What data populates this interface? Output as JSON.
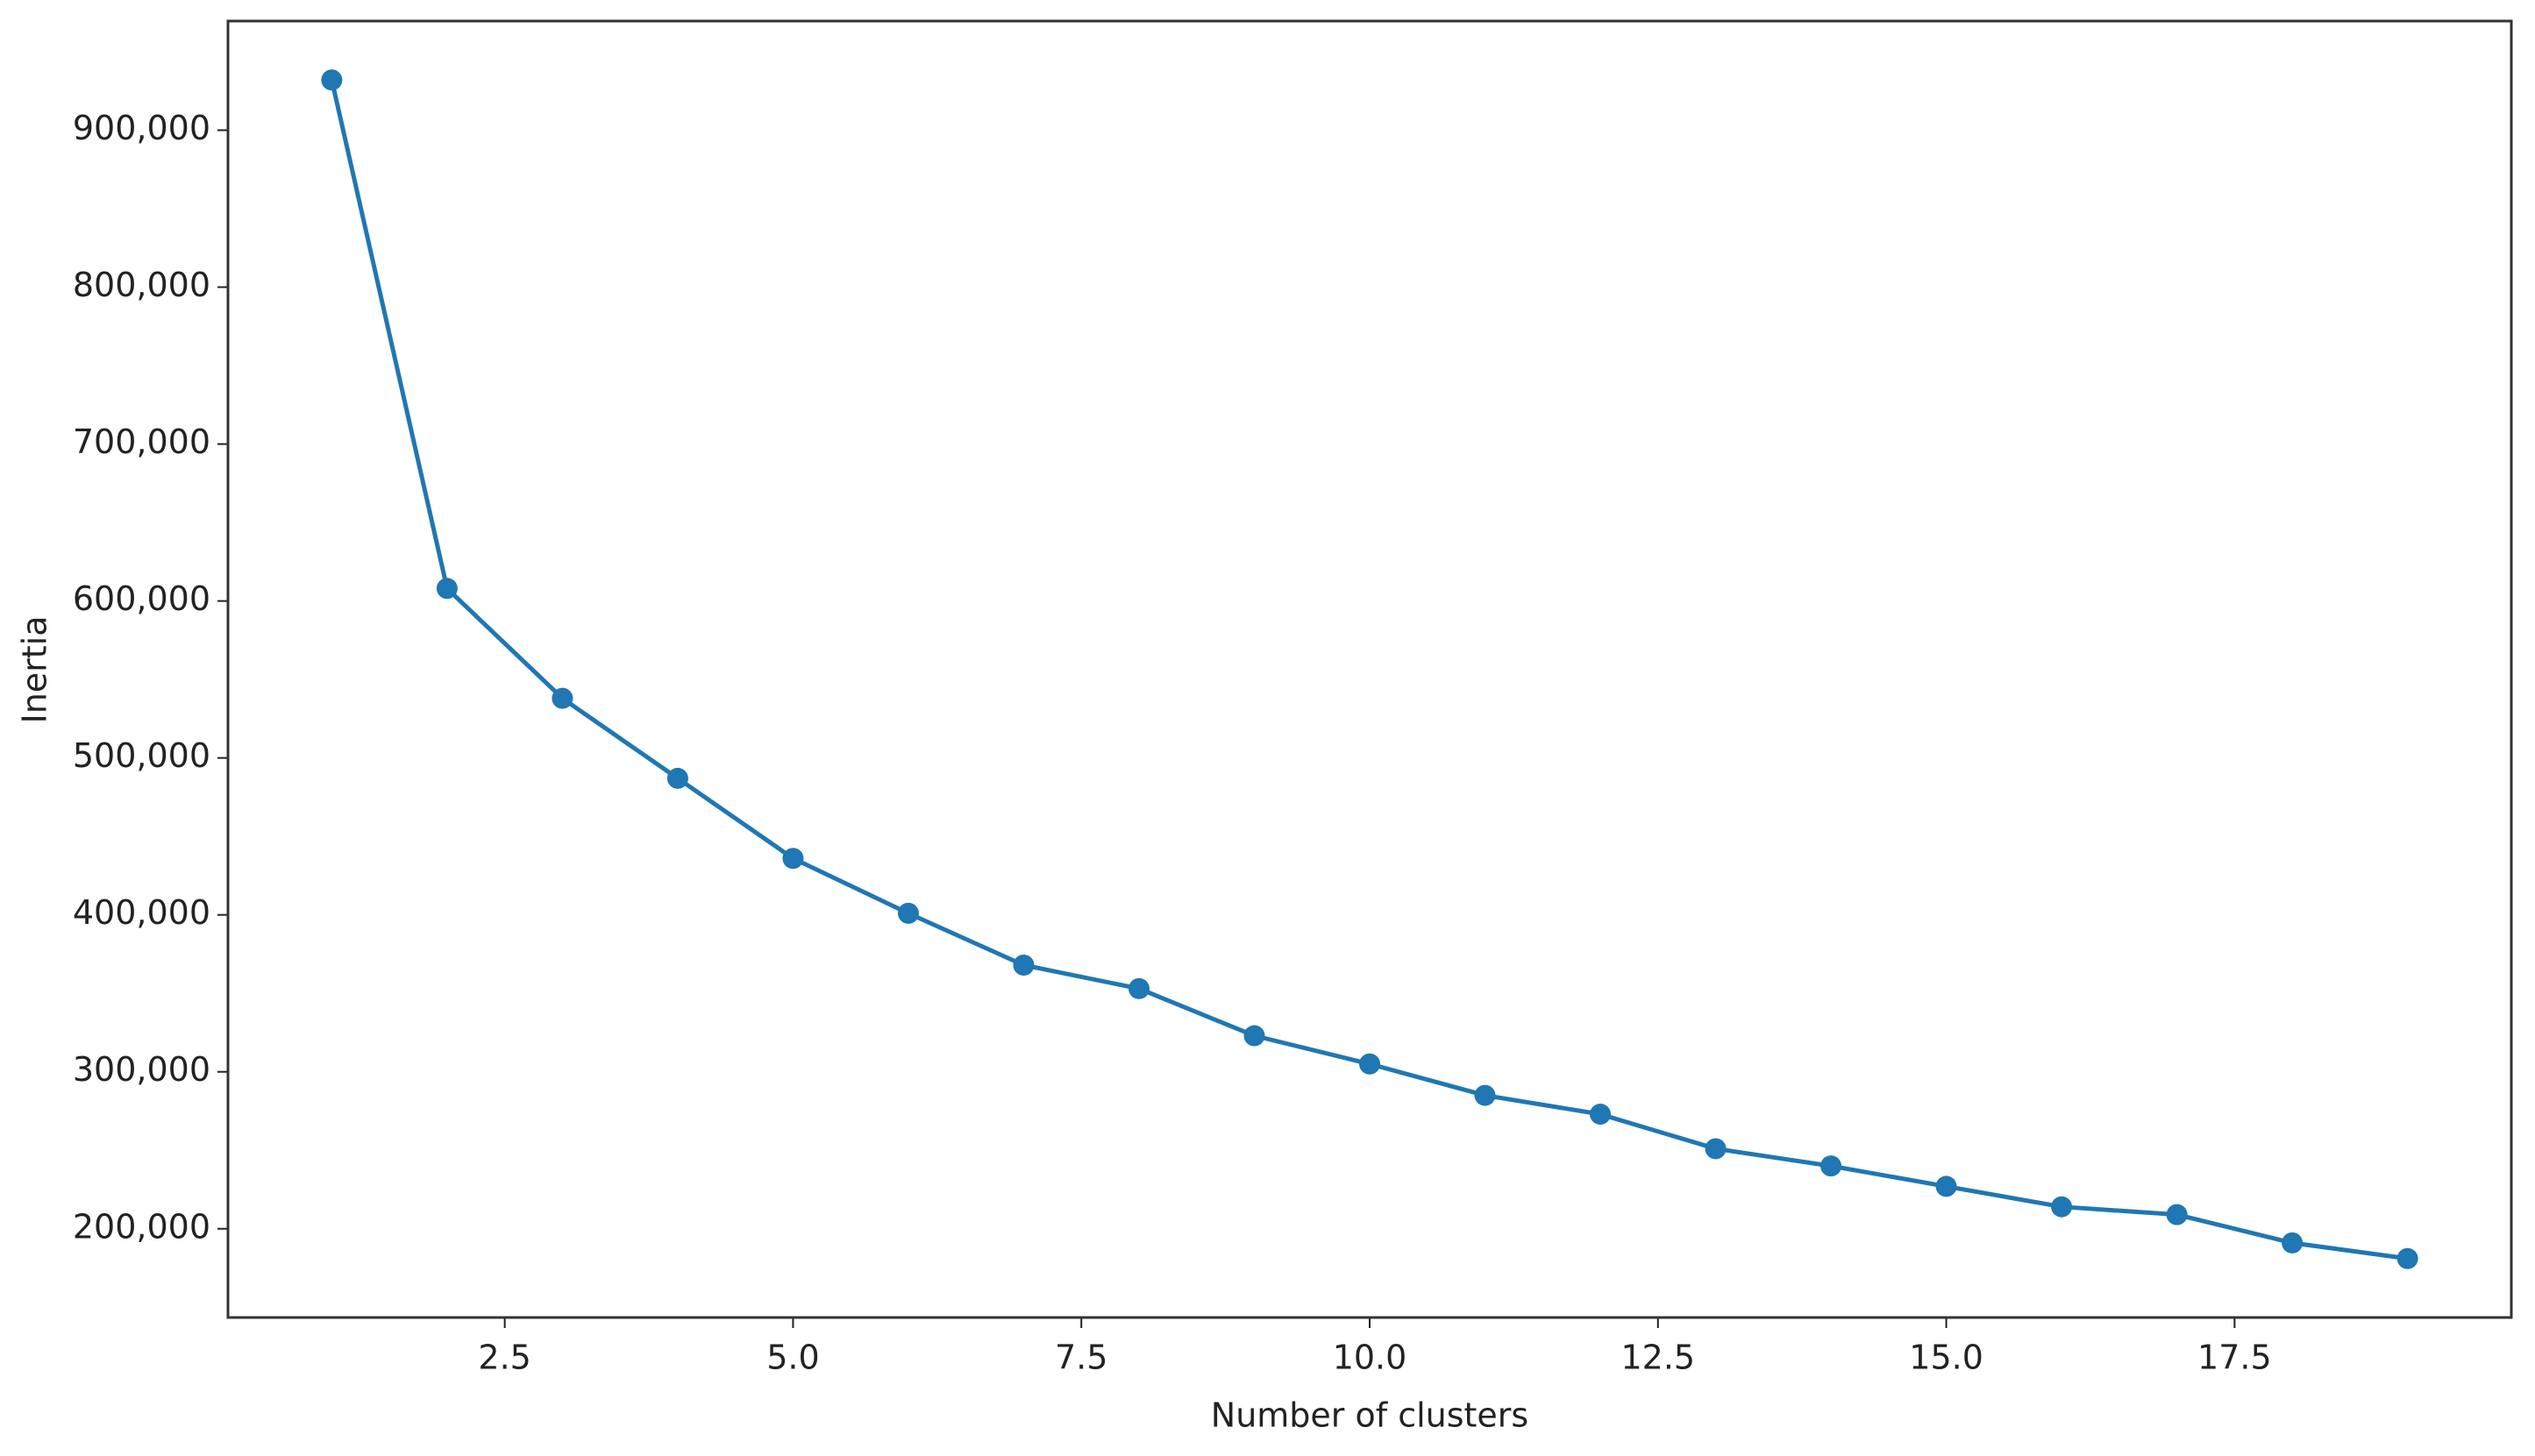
{
  "chart_data": {
    "type": "line",
    "xlabel": "Number of clusters",
    "ylabel": "Inertia",
    "x": [
      1,
      2,
      3,
      4,
      5,
      6,
      7,
      8,
      9,
      10,
      11,
      12,
      13,
      14,
      15,
      16,
      17,
      18,
      19
    ],
    "series": [
      {
        "color": "#1f77b4",
        "marker": "circle",
        "values": [
          932000,
          608000,
          538000,
          487000,
          436000,
          401000,
          368000,
          353000,
          323000,
          305000,
          285000,
          273000,
          251000,
          240000,
          227000,
          214000,
          209000,
          191000,
          181000
        ]
      }
    ],
    "xlim": [
      0.1,
      19.9
    ],
    "xticks": [
      2.5,
      {
        "value": 5,
        "label": "5.0"
      },
      7.5,
      {
        "value": 10,
        "label": "10.0"
      },
      12.5,
      {
        "value": 15,
        "label": "15.0"
      },
      17.5
    ],
    "ylim": [
      143450,
      969550
    ],
    "yticks": [
      {
        "value": 200000,
        "label": "200,000"
      },
      {
        "value": 300000,
        "label": "300,000"
      },
      {
        "value": 400000,
        "label": "400,000"
      },
      {
        "value": 500000,
        "label": "500,000"
      },
      {
        "value": 600000,
        "label": "600,000"
      },
      {
        "value": 700000,
        "label": "700,000"
      },
      {
        "value": 800000,
        "label": "800,000"
      },
      {
        "value": 900000,
        "label": "900,000"
      }
    ],
    "grid": false
  }
}
